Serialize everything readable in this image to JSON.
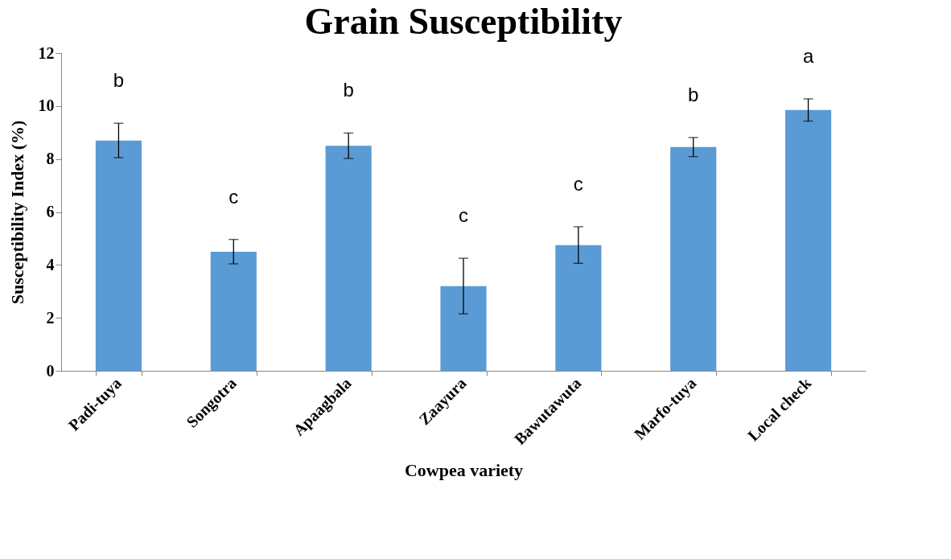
{
  "chart_data": {
    "type": "bar",
    "title": "Grain Susceptibility",
    "xlabel": "Cowpea variety",
    "ylabel": "Susceptibility  Index (%)",
    "categories": [
      "Padi-tuya",
      "Songotra",
      "Apaagbala",
      "Zaayura",
      "Bawutawuta",
      "Marfo-tuya",
      "Local check"
    ],
    "values": [
      8.7,
      4.5,
      8.5,
      3.2,
      4.75,
      8.45,
      9.85
    ],
    "errors": [
      0.65,
      0.46,
      0.48,
      1.05,
      0.69,
      0.36,
      0.42
    ],
    "color": "#5b9bd5",
    "ylim": [
      0,
      12
    ],
    "yticks": [
      0,
      2,
      4,
      6,
      8,
      10,
      12
    ],
    "grid": false,
    "annotations": [
      "b",
      "c",
      "b",
      "c",
      "c",
      "b",
      "a"
    ]
  }
}
